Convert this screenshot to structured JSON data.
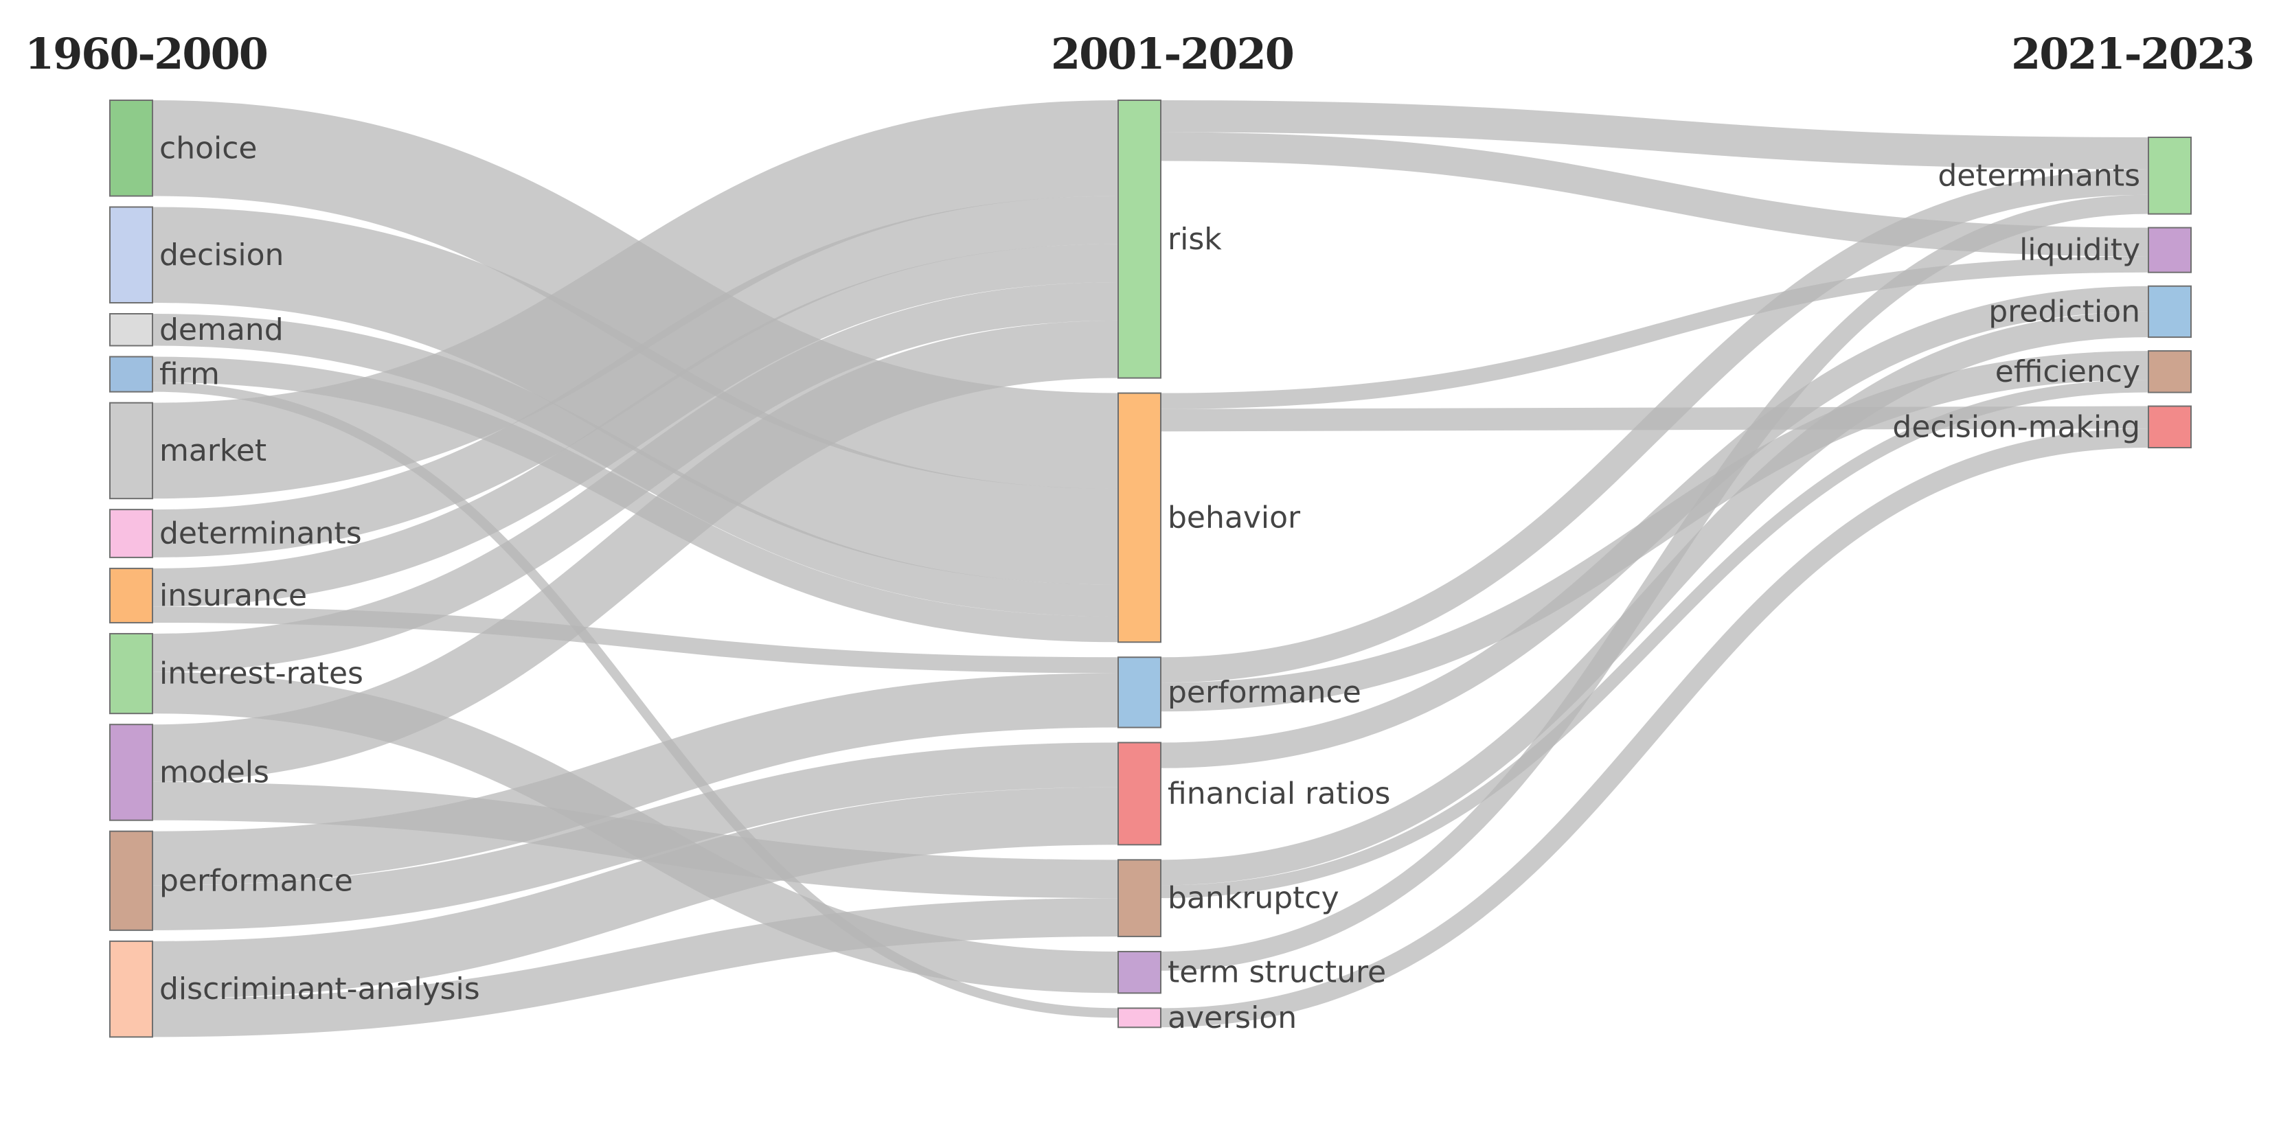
{
  "periods": [
    "1960-2000",
    "2001-2020",
    "2021-2023"
  ],
  "colors": {
    "link": "#b5b5b5",
    "node_stroke": "#6f6f6f",
    "label": "#444444"
  },
  "nodes": [
    {
      "id": "c0_choice",
      "label": "choice",
      "column": 0,
      "color": "#8ecb8a"
    },
    {
      "id": "c0_decision",
      "label": "decision",
      "column": 0,
      "color": "#c3d1ee"
    },
    {
      "id": "c0_demand",
      "label": "demand",
      "column": 0,
      "color": "#dcdcdc"
    },
    {
      "id": "c0_firm",
      "label": "firm",
      "column": 0,
      "color": "#9ebfe0"
    },
    {
      "id": "c0_market",
      "label": "market",
      "column": 0,
      "color": "#cbcbcb"
    },
    {
      "id": "c0_determinants",
      "label": "determinants",
      "column": 0,
      "color": "#f9c0e2"
    },
    {
      "id": "c0_insurance",
      "label": "insurance",
      "column": 0,
      "color": "#fcb877"
    },
    {
      "id": "c0_interest",
      "label": "interest-rates",
      "column": 0,
      "color": "#a4d89e"
    },
    {
      "id": "c0_models",
      "label": "models",
      "column": 0,
      "color": "#c69fd0"
    },
    {
      "id": "c0_performance",
      "label": "performance",
      "column": 0,
      "color": "#cda48f"
    },
    {
      "id": "c0_discriminant",
      "label": "discriminant-analysis",
      "column": 0,
      "color": "#fcc6ac"
    },
    {
      "id": "c1_risk",
      "label": "risk",
      "column": 1,
      "color": "#a6dba0"
    },
    {
      "id": "c1_behavior",
      "label": "behavior",
      "column": 1,
      "color": "#fdbb78"
    },
    {
      "id": "c1_performance",
      "label": "performance",
      "column": 1,
      "color": "#9ec4e3"
    },
    {
      "id": "c1_ratios",
      "label": "financial ratios",
      "column": 1,
      "color": "#f28a8a"
    },
    {
      "id": "c1_bankruptcy",
      "label": "bankruptcy",
      "column": 1,
      "color": "#cda48f"
    },
    {
      "id": "c1_term",
      "label": "term structure",
      "column": 1,
      "color": "#c4a2d2"
    },
    {
      "id": "c1_aversion",
      "label": "aversion",
      "column": 1,
      "color": "#fbc2e3"
    },
    {
      "id": "c2_determinants",
      "label": "determinants",
      "column": 2,
      "color": "#a6dba0"
    },
    {
      "id": "c2_liquidity",
      "label": "liquidity",
      "column": 2,
      "color": "#c69fd0"
    },
    {
      "id": "c2_prediction",
      "label": "prediction",
      "column": 2,
      "color": "#9ec4e3"
    },
    {
      "id": "c2_efficiency",
      "label": "efficiency",
      "column": 2,
      "color": "#cda48f"
    },
    {
      "id": "c2_decision",
      "label": "decision-making",
      "column": 2,
      "color": "#f28a8a"
    }
  ],
  "links": [
    {
      "source": "c0_choice",
      "target": "c1_behavior",
      "value": 150
    },
    {
      "source": "c0_decision",
      "target": "c1_behavior",
      "value": 150
    },
    {
      "source": "c0_demand",
      "target": "c1_behavior",
      "value": 50
    },
    {
      "source": "c0_firm",
      "target": "c1_behavior",
      "value": 40
    },
    {
      "source": "c0_firm",
      "target": "c1_aversion",
      "value": 15
    },
    {
      "source": "c0_market",
      "target": "c1_risk",
      "value": 150
    },
    {
      "source": "c0_determinants",
      "target": "c1_risk",
      "value": 75
    },
    {
      "source": "c0_insurance",
      "target": "c1_risk",
      "value": 60
    },
    {
      "source": "c0_insurance",
      "target": "c1_performance",
      "value": 25
    },
    {
      "source": "c0_interest",
      "target": "c1_risk",
      "value": 60
    },
    {
      "source": "c0_interest",
      "target": "c1_term",
      "value": 65
    },
    {
      "source": "c0_models",
      "target": "c1_risk",
      "value": 90
    },
    {
      "source": "c0_models",
      "target": "c1_bankruptcy",
      "value": 60
    },
    {
      "source": "c0_performance",
      "target": "c1_performance",
      "value": 85
    },
    {
      "source": "c0_performance",
      "target": "c1_ratios",
      "value": 70
    },
    {
      "source": "c0_discriminant",
      "target": "c1_ratios",
      "value": 90
    },
    {
      "source": "c0_discriminant",
      "target": "c1_bankruptcy",
      "value": 60
    },
    {
      "source": "c1_risk",
      "target": "c2_determinants",
      "value": 50
    },
    {
      "source": "c1_risk",
      "target": "c2_liquidity",
      "value": 45
    },
    {
      "source": "c1_behavior",
      "target": "c2_liquidity",
      "value": 25
    },
    {
      "source": "c1_behavior",
      "target": "c2_decision",
      "value": 35
    },
    {
      "source": "c1_performance",
      "target": "c2_determinants",
      "value": 40
    },
    {
      "source": "c1_performance",
      "target": "c2_efficiency",
      "value": 45
    },
    {
      "source": "c1_ratios",
      "target": "c2_prediction",
      "value": 40
    },
    {
      "source": "c1_bankruptcy",
      "target": "c2_prediction",
      "value": 40
    },
    {
      "source": "c1_bankruptcy",
      "target": "c2_efficiency",
      "value": 20
    },
    {
      "source": "c1_term",
      "target": "c2_determinants",
      "value": 30
    },
    {
      "source": "c1_aversion",
      "target": "c2_decision",
      "value": 30
    }
  ]
}
